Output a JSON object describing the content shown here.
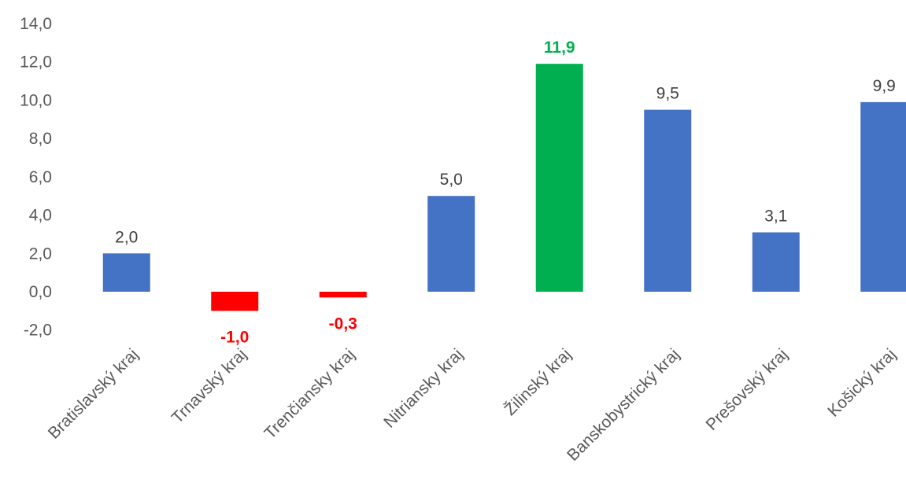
{
  "chart_data": {
    "type": "bar",
    "title": "",
    "xlabel": "",
    "ylabel": "",
    "ylim": [
      -2,
      14
    ],
    "y_ticks": [
      "14,0",
      "12,0",
      "10,0",
      "8,0",
      "6,0",
      "4,0",
      "2,0",
      "0,0",
      "-2,0"
    ],
    "y_tick_values": [
      14,
      12,
      10,
      8,
      6,
      4,
      2,
      0,
      -2
    ],
    "grid": false,
    "legend": "none",
    "categories": [
      "Bratislavský kraj",
      "Trnavský kraj",
      "Trenčiansky kraj",
      "Nitriansky kraj",
      "Žilinský kraj",
      "Banskobystrický kraj",
      "Prešovský kraj",
      "Košický kraj"
    ],
    "values": [
      2.0,
      -1.0,
      -0.3,
      5.0,
      11.9,
      9.5,
      3.1,
      9.9
    ],
    "data_labels": [
      "2,0",
      "-1,0",
      "-0,3",
      "5,0",
      "11,9",
      "9,5",
      "3,1",
      "9,9"
    ],
    "colors": {
      "default": "#4472C4",
      "negative": "#FF0000",
      "highlight": "#00B050",
      "label_default": "#404040"
    },
    "highlight_index": 4
  }
}
